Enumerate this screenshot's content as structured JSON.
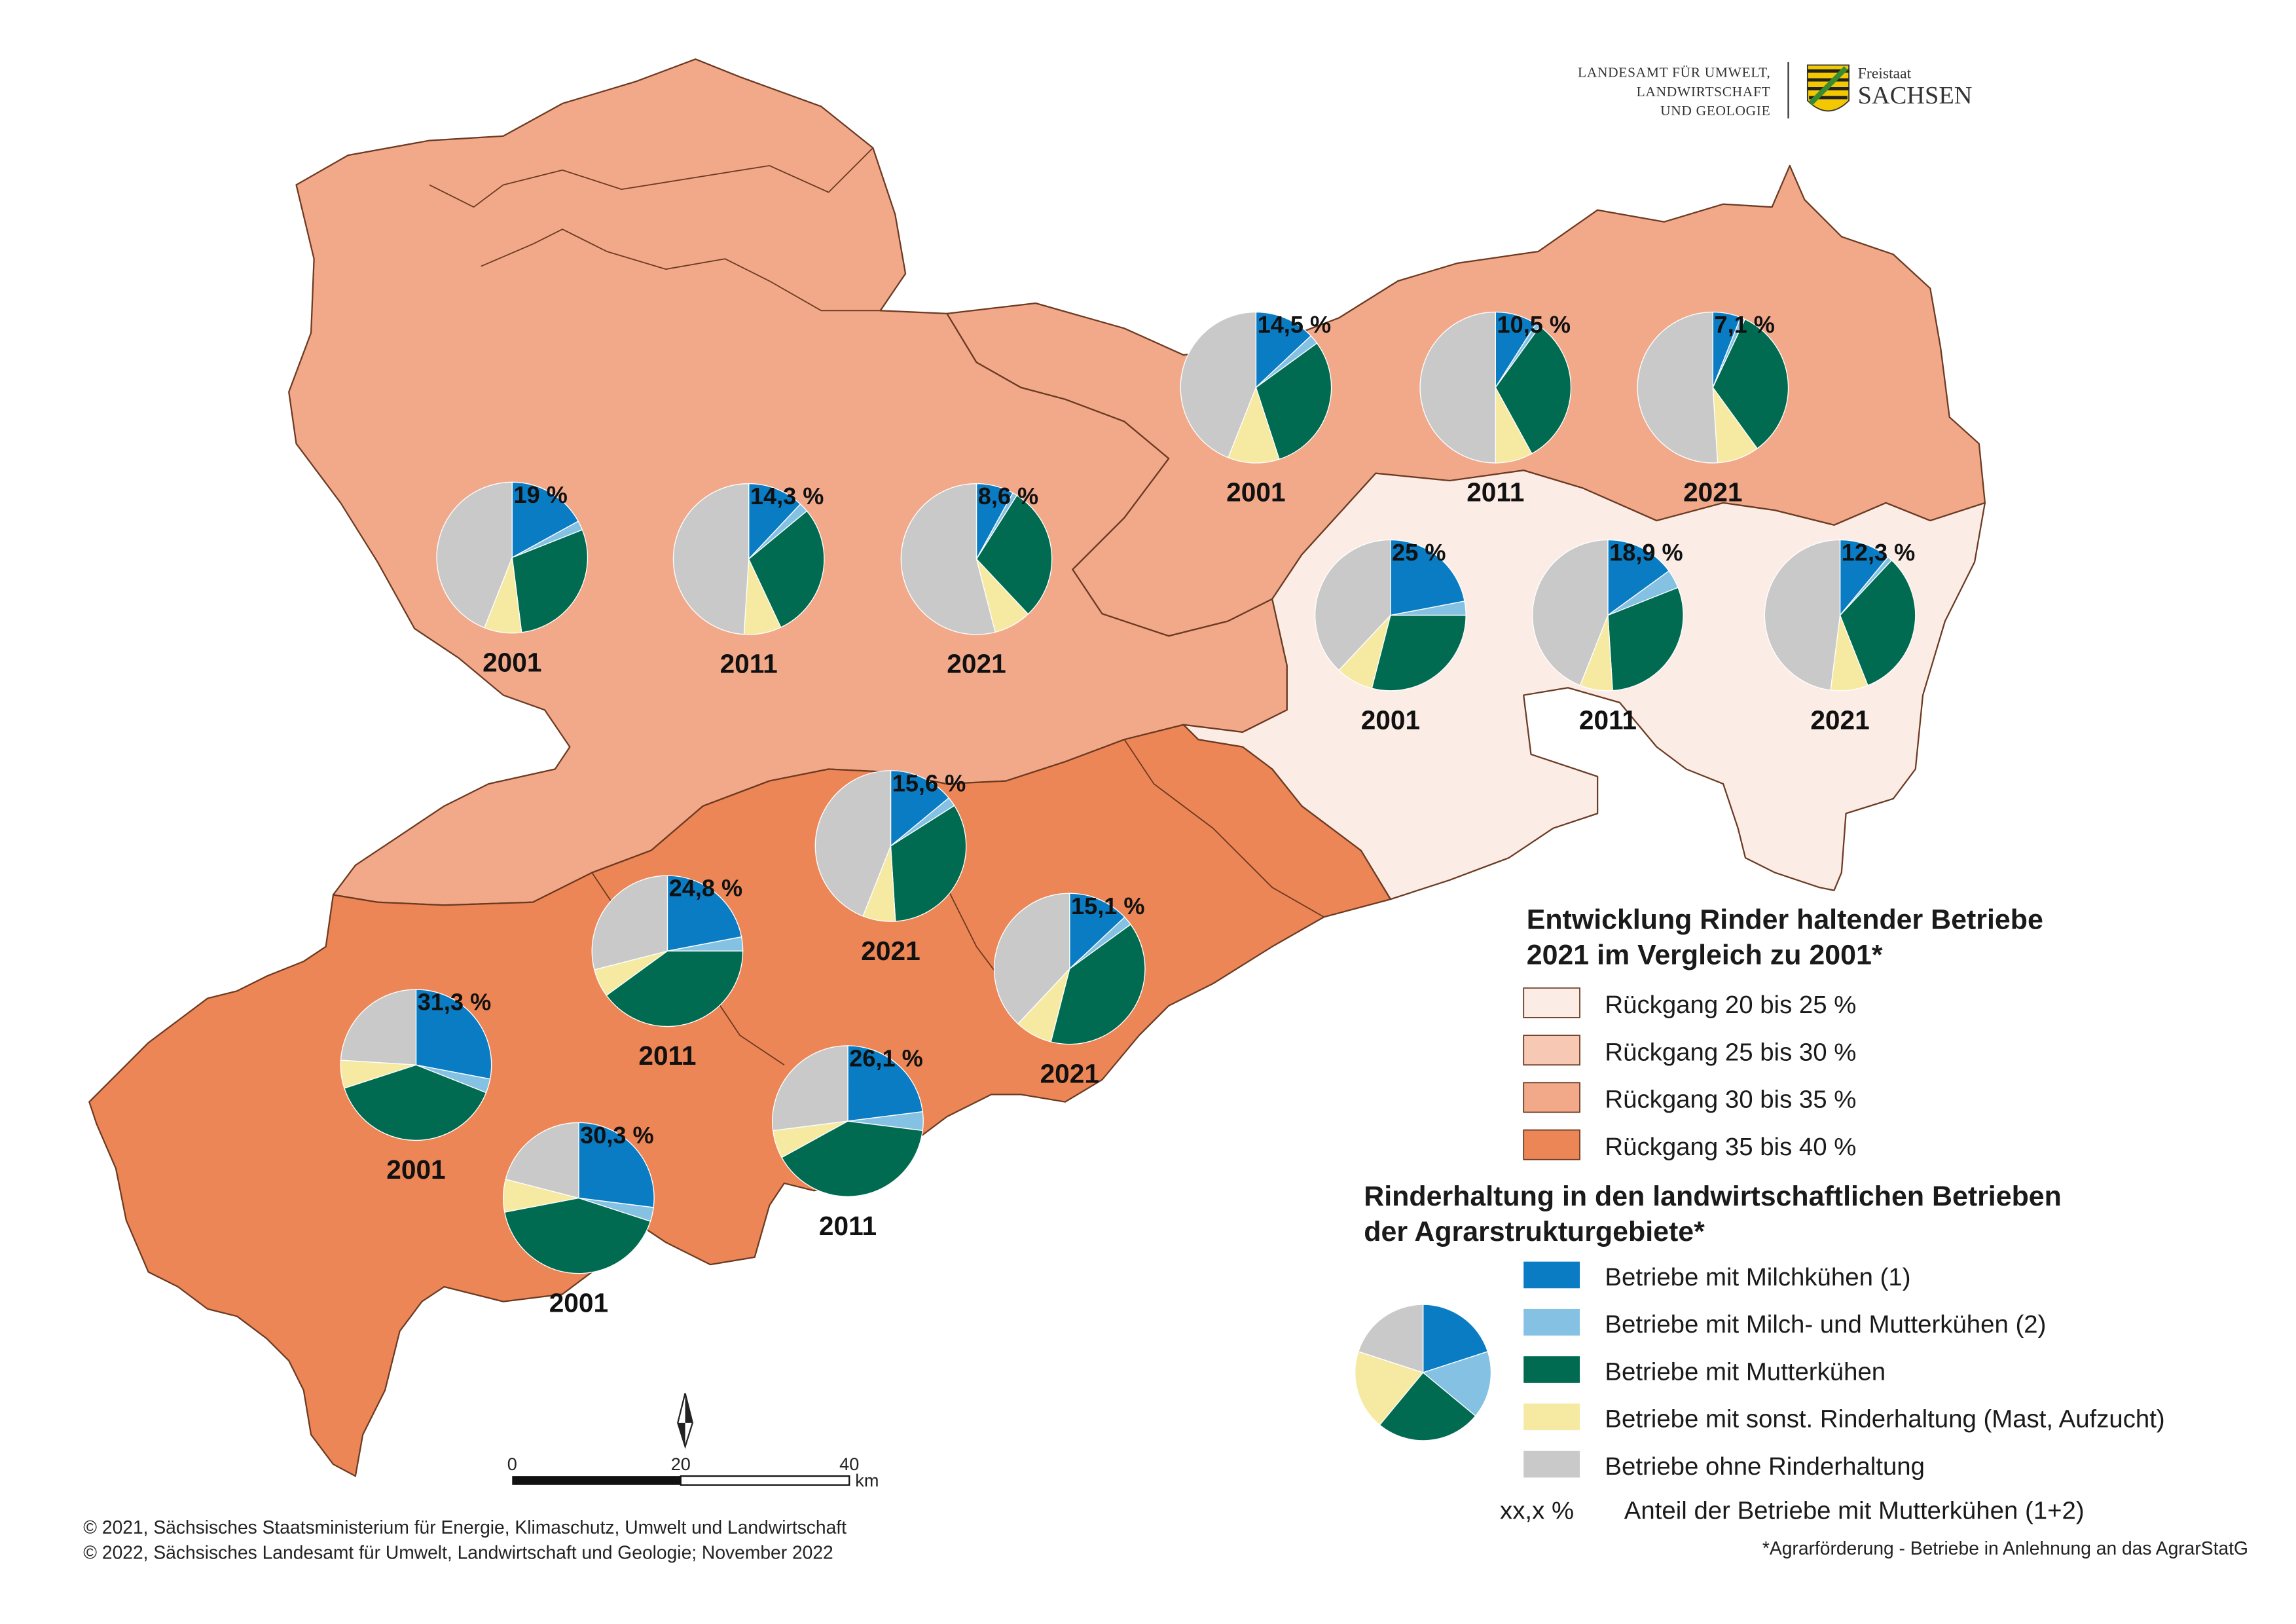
{
  "colors": {
    "milchkuehe": "#0a7cc4",
    "milch_mutter": "#85c1e3",
    "mutterkuehe": "#006b50",
    "sonst": "#f6e9a2",
    "ohne": "#c9c9c9",
    "rueckgang_20_25": "#fbece6",
    "rueckgang_25_30": "#f7c8b3",
    "rueckgang_30_35": "#f2a98a",
    "rueckgang_35_40": "#ed8656",
    "border": "#6b3a22"
  },
  "header": {
    "agency_line1": "LANDESAMT FÜR UMWELT,",
    "agency_line2": "LANDWIRTSCHAFT",
    "agency_line3": "UND GEOLOGIE",
    "state_line1": "Freistaat",
    "state_line2": "SACHSEN"
  },
  "legend": {
    "title1_line1": "Entwicklung Rinder haltender Betriebe",
    "title1_line2": "2021 im Vergleich zu 2001*",
    "classes": [
      {
        "label": "Rückgang 20 bis 25 %",
        "color": "#fbece6"
      },
      {
        "label": "Rückgang 25 bis 30 %",
        "color": "#f7c8b3"
      },
      {
        "label": "Rückgang 30 bis 35 %",
        "color": "#f2a98a"
      },
      {
        "label": "Rückgang 35 bis 40 %",
        "color": "#ed8656"
      }
    ],
    "title2_line1": "Rinderhaltung in den landwirtschaftlichen Betrieben",
    "title2_line2": "der Agrarstrukturgebiete*",
    "categories": [
      {
        "label": "Betriebe mit Milchkühen (1)",
        "color": "#0a7cc4"
      },
      {
        "label": "Betriebe mit Milch- und Mutterkühen (2)",
        "color": "#85c1e3"
      },
      {
        "label": "Betriebe mit Mutterkühen",
        "color": "#006b50"
      },
      {
        "label": "Betriebe mit sonst. Rinderhaltung (Mast, Aufzucht)",
        "color": "#f6e9a2"
      },
      {
        "label": "Betriebe ohne Rinderhaltung",
        "color": "#c9c9c9"
      }
    ],
    "share_symbol": "xx,x %",
    "share_label": "Anteil der Betriebe mit Mutterkühen (1+2)",
    "footnote": "*Agrarförderung - Betriebe in Anlehnung an das AgrarStatG"
  },
  "scalebar": {
    "tick_0": "0",
    "tick_20": "20",
    "tick_40": "40",
    "unit": "km"
  },
  "copyright": {
    "line1": "© 2021, Sächsisches Staatsministerium für Energie, Klimaschutz, Umwelt und Landwirtschaft",
    "line2": "© 2022, Sächsisches Landesamt für Umwelt, Landwirtschaft und Geologie; November 2022"
  },
  "pies": [
    {
      "year": "2001",
      "label": "19 %",
      "shares": [
        0.17,
        0.02,
        0.29,
        0.08,
        0.44
      ]
    },
    {
      "year": "2011",
      "label": "14,3 %",
      "shares": [
        0.12,
        0.02,
        0.29,
        0.08,
        0.49
      ]
    },
    {
      "year": "2021",
      "label": "8,6 %",
      "shares": [
        0.08,
        0.01,
        0.29,
        0.08,
        0.54
      ]
    },
    {
      "year": "2001",
      "label": "14,5 %",
      "shares": [
        0.13,
        0.02,
        0.3,
        0.11,
        0.44
      ]
    },
    {
      "year": "2011",
      "label": "10,5 %",
      "shares": [
        0.09,
        0.01,
        0.32,
        0.08,
        0.5
      ]
    },
    {
      "year": "2021",
      "label": "7,1 %",
      "shares": [
        0.06,
        0.01,
        0.33,
        0.09,
        0.51
      ]
    },
    {
      "year": "2001",
      "label": "25 %",
      "shares": [
        0.22,
        0.03,
        0.29,
        0.08,
        0.38
      ]
    },
    {
      "year": "2011",
      "label": "18,9 %",
      "shares": [
        0.15,
        0.04,
        0.3,
        0.07,
        0.44
      ]
    },
    {
      "year": "2021",
      "label": "12,3 %",
      "shares": [
        0.11,
        0.01,
        0.32,
        0.08,
        0.48
      ]
    },
    {
      "year": "2021",
      "label": "15,6 %",
      "shares": [
        0.14,
        0.02,
        0.33,
        0.07,
        0.44
      ]
    },
    {
      "year": "2011",
      "label": "24,8 %",
      "shares": [
        0.22,
        0.03,
        0.4,
        0.06,
        0.29
      ]
    },
    {
      "year": "2021",
      "label": "15,1 %",
      "shares": [
        0.13,
        0.02,
        0.39,
        0.08,
        0.38
      ]
    },
    {
      "year": "2001",
      "label": "31,3 %",
      "shares": [
        0.28,
        0.03,
        0.39,
        0.06,
        0.24
      ]
    },
    {
      "year": "2011",
      "label": "26,1 %",
      "shares": [
        0.23,
        0.04,
        0.4,
        0.06,
        0.27
      ]
    },
    {
      "year": "2001",
      "label": "30,3 %",
      "shares": [
        0.27,
        0.03,
        0.42,
        0.07,
        0.21
      ]
    }
  ],
  "legend_pie_shares": [
    0.2,
    0.16,
    0.25,
    0.19,
    0.2
  ]
}
